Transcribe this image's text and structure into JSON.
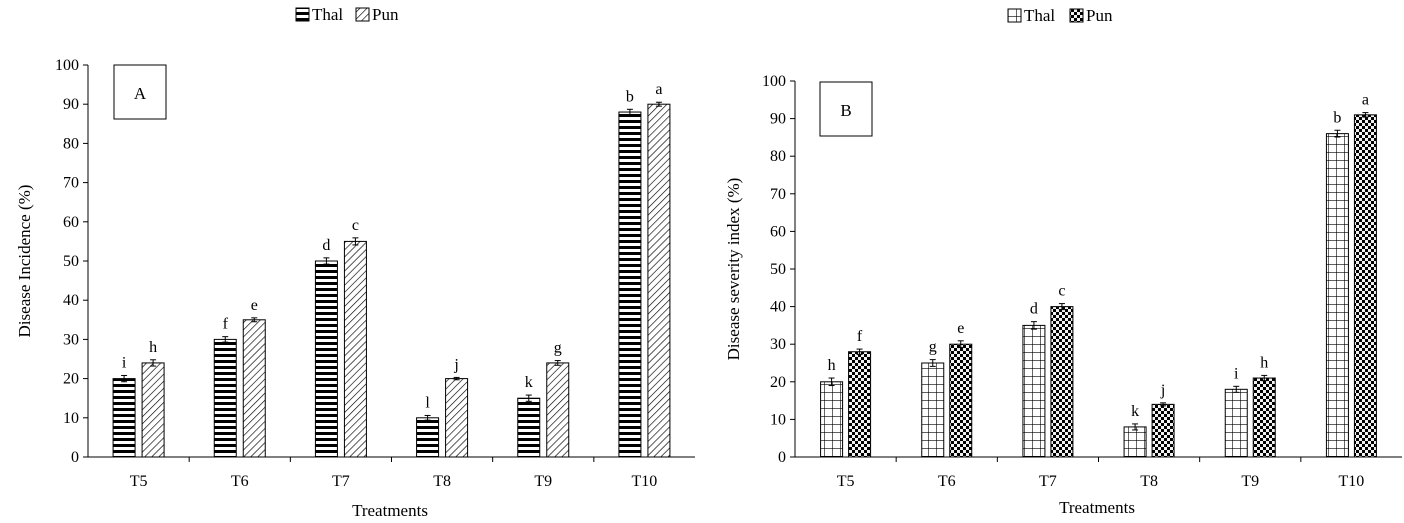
{
  "chart_data": [
    {
      "type": "bar",
      "panel_label": "A",
      "categories": [
        "T5",
        "T6",
        "T7",
        "T8",
        "T9",
        "T10"
      ],
      "series": [
        {
          "name": "Thal",
          "pattern": "horizontal-lines",
          "values": [
            20,
            30,
            50,
            10,
            15,
            88
          ],
          "errors": [
            0.8,
            0.7,
            0.8,
            0.6,
            0.8,
            0.7
          ],
          "letters": [
            "i",
            "f",
            "d",
            "l",
            "k",
            "b"
          ]
        },
        {
          "name": "Pun",
          "pattern": "diagonal-lines",
          "values": [
            24,
            35,
            55,
            20,
            24,
            90
          ],
          "errors": [
            0.8,
            0.5,
            0.9,
            0.3,
            0.6,
            0.5
          ],
          "letters": [
            "h",
            "e",
            "c",
            "j",
            "g",
            "a"
          ]
        }
      ],
      "xlabel": "Treatments",
      "ylabel": "Disease Incidence (%)",
      "ylim": [
        0,
        100
      ],
      "yticks": [
        0,
        10,
        20,
        30,
        40,
        50,
        60,
        70,
        80,
        90,
        100
      ],
      "legend": "top-center",
      "grid": false
    },
    {
      "type": "bar",
      "panel_label": "B",
      "categories": [
        "T5",
        "T6",
        "T7",
        "T8",
        "T9",
        "T10"
      ],
      "series": [
        {
          "name": "Thal",
          "pattern": "grid",
          "values": [
            20,
            25,
            35,
            8,
            18,
            86
          ],
          "errors": [
            1.0,
            0.9,
            1.0,
            0.8,
            0.8,
            0.9
          ],
          "letters": [
            "h",
            "g",
            "d",
            "k",
            "i",
            "b"
          ]
        },
        {
          "name": "Pun",
          "pattern": "checker",
          "values": [
            28,
            30,
            40,
            14,
            21,
            91
          ],
          "errors": [
            0.7,
            0.9,
            0.8,
            0.4,
            0.7,
            0.6
          ],
          "letters": [
            "f",
            "e",
            "c",
            "j",
            "h",
            "a"
          ]
        }
      ],
      "xlabel": "Treatments",
      "ylabel": "Disease severity index (%)",
      "ylim": [
        0,
        100
      ],
      "yticks": [
        0,
        10,
        20,
        30,
        40,
        50,
        60,
        70,
        80,
        90,
        100
      ],
      "legend": "top-center",
      "grid": false
    }
  ]
}
